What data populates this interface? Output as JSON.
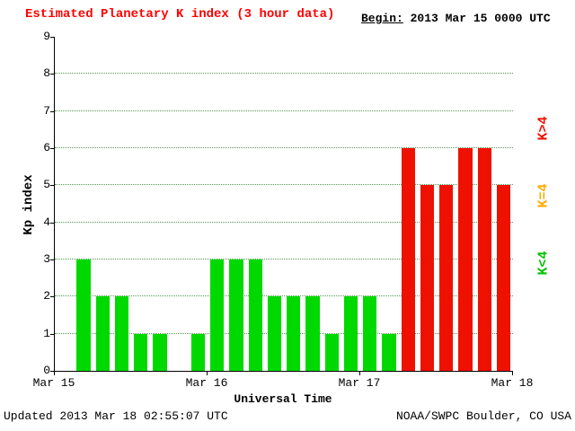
{
  "header": {
    "title": "Estimated Planetary K index (3 hour data)",
    "begin_label": "Begin:",
    "begin_value": "2013 Mar 15 0000 UTC"
  },
  "footer": {
    "updated": "Updated 2013 Mar 18 02:55:07 UTC",
    "credit": "NOAA/SWPC Boulder, CO USA"
  },
  "chart_data": {
    "type": "bar",
    "title": "Estimated Planetary K index (3 hour data)",
    "begin": "2013 Mar 15 0000 UTC",
    "xlabel": "Universal Time",
    "ylabel": "Kp index",
    "ylim": [
      0,
      9
    ],
    "y_ticks": [
      0,
      1,
      2,
      3,
      4,
      5,
      6,
      7,
      8,
      9
    ],
    "x_tick_labels": [
      "Mar 15",
      "Mar 16",
      "Mar 17",
      "Mar 18"
    ],
    "bar_interval_hours": 3,
    "grid": "horizontal dotted, levels 1-8",
    "days": [
      {
        "date": "2013 Mar 15",
        "values": [
          0,
          3,
          2,
          2,
          1,
          1,
          0,
          1
        ]
      },
      {
        "date": "2013 Mar 16",
        "values": [
          3,
          3,
          3,
          2,
          2,
          2,
          1,
          2
        ]
      },
      {
        "date": "2013 Mar 17",
        "values": [
          2,
          1,
          6,
          5,
          5,
          6,
          6,
          5
        ]
      }
    ],
    "values": [
      0,
      3,
      2,
      2,
      1,
      1,
      0,
      1,
      3,
      3,
      3,
      2,
      2,
      2,
      1,
      2,
      2,
      1,
      6,
      5,
      5,
      6,
      6,
      5
    ],
    "colors": {
      "k_below_4": "#00d900",
      "k_equal_4": "#ffaa00",
      "k_above_4": "#ee1100",
      "grid": "#559955",
      "title": "#ff0000"
    },
    "legend": [
      {
        "label": "K>4",
        "color": "#ee1100",
        "meaning": "Kp greater than 4"
      },
      {
        "label": "K=4",
        "color": "#ffaa00",
        "meaning": "Kp equal to 4"
      },
      {
        "label": "K<4",
        "color": "#00c000",
        "meaning": "Kp less than 4"
      }
    ],
    "legend_position": "right, rotated 90deg"
  }
}
